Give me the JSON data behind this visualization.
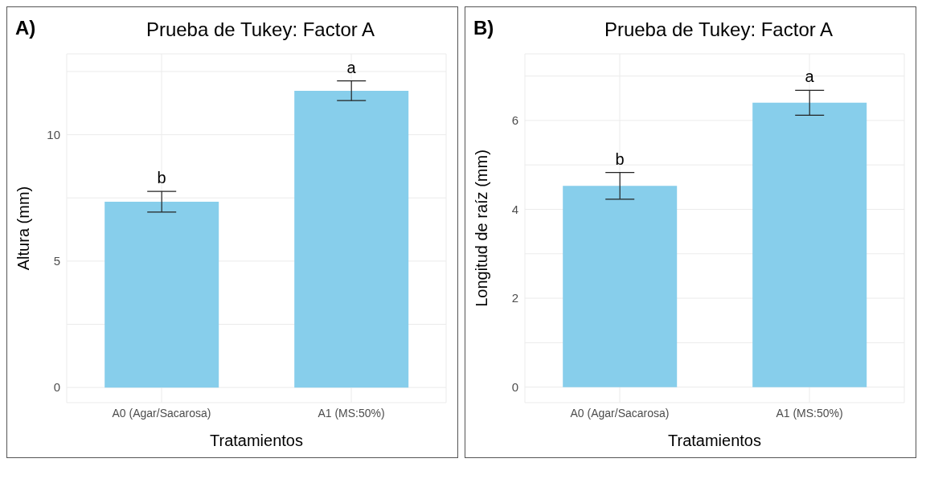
{
  "chart_data": [
    {
      "type": "bar",
      "title": "Prueba de Tukey: Factor A",
      "xlabel": "Tratamientos",
      "ylabel": "Altura (mm)",
      "categories": [
        "A0 (Agar/Sacarosa)",
        "A1 (MS:50%)"
      ],
      "values": [
        7.35,
        11.74
      ],
      "errors": [
        0.41,
        0.39
      ],
      "color": "#87ceeb",
      "ylim": [
        -0.6,
        13.2
      ],
      "yticks": [
        0,
        {
          "value": 2.5,
          "label": null
        },
        5,
        {
          "value": 7.5,
          "label": null
        },
        10,
        {
          "value": 12.5,
          "label": null
        }
      ],
      "grid": true,
      "annotations": [
        "A)",
        {
          "text": "b",
          "x": "A0 (Agar/Sacarosa)",
          "y": 7.76
        },
        {
          "text": "a",
          "x": "A1 (MS:50%)",
          "y": 12.13
        }
      ]
    },
    {
      "type": "bar",
      "title": "Prueba de Tukey: Factor A",
      "xlabel": "Tratamientos",
      "ylabel": "Longitud de raíz (mm)",
      "categories": [
        "A0 (Agar/Sacarosa)",
        "A1 (MS:50%)"
      ],
      "values": [
        4.53,
        6.4
      ],
      "errors": [
        0.3,
        0.28
      ],
      "color": "#87ceeb",
      "ylim": [
        -0.35,
        7.5
      ],
      "yticks": [
        0,
        {
          "value": 1,
          "label": null
        },
        2,
        {
          "value": 3,
          "label": null
        },
        4,
        {
          "value": 5,
          "label": null
        },
        6,
        {
          "value": 7,
          "label": null
        }
      ],
      "grid": true,
      "annotations": [
        "B)",
        {
          "text": "b",
          "x": "A0 (Agar/Sacarosa)",
          "y": 4.83
        },
        {
          "text": "a",
          "x": "A1 (MS:50%)",
          "y": 6.68
        }
      ]
    }
  ]
}
